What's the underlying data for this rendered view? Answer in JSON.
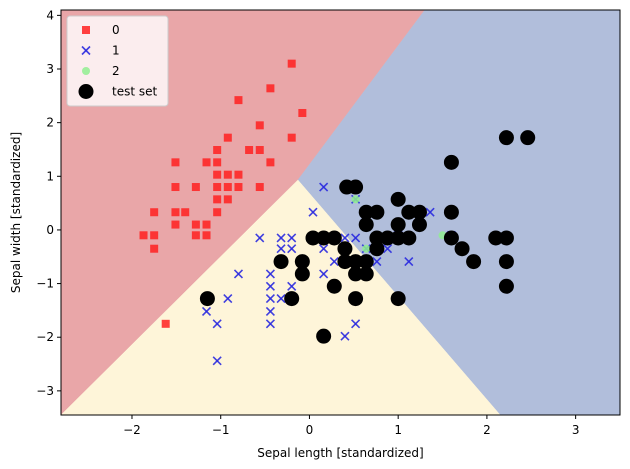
{
  "chart_data": {
    "type": "scatter",
    "title": "",
    "xlabel": "Sepal length [standardized]",
    "ylabel": "Sepal width [standardized]",
    "xlim": [
      -2.8,
      3.5
    ],
    "ylim": [
      -3.45,
      4.1
    ],
    "xticks": [
      -2,
      -1,
      0,
      1,
      2,
      3
    ],
    "xtick_labels": [
      "−2",
      "−1",
      "0",
      "1",
      "2",
      "3"
    ],
    "yticks": [
      -3,
      -2,
      -1,
      0,
      1,
      2,
      3,
      4
    ],
    "ytick_labels": [
      "−3",
      "−2",
      "−1",
      "0",
      "1",
      "2",
      "3",
      "4"
    ],
    "legend_position": "top-left",
    "decision_regions": [
      {
        "class": "0",
        "color": "#e9a6a8",
        "polygon": [
          [
            -2.8,
            -3.45
          ],
          [
            -2.8,
            4.1
          ],
          [
            1.3,
            4.1
          ],
          [
            -0.13,
            0.93
          ],
          [
            -2.8,
            -3.45
          ]
        ]
      },
      {
        "class": "1",
        "color": "#b1bedb",
        "polygon": [
          [
            1.3,
            4.1
          ],
          [
            3.5,
            4.1
          ],
          [
            3.5,
            -3.45
          ],
          [
            2.15,
            -3.45
          ],
          [
            -0.13,
            0.93
          ]
        ]
      },
      {
        "class": "2",
        "color": "#fef5d9",
        "polygon": [
          [
            -2.8,
            -3.45
          ],
          [
            -0.13,
            0.93
          ],
          [
            2.15,
            -3.45
          ]
        ]
      }
    ],
    "series": [
      {
        "name": "0",
        "marker": "square",
        "color": "#ff2020",
        "points": [
          [
            -1.75,
            0.33
          ],
          [
            -1.87,
            -0.1
          ],
          [
            -1.75,
            -0.1
          ],
          [
            -1.75,
            -0.35
          ],
          [
            -1.51,
            1.26
          ],
          [
            -1.51,
            0.8
          ],
          [
            -1.51,
            0.33
          ],
          [
            -1.51,
            0.1
          ],
          [
            -1.4,
            0.33
          ],
          [
            -1.28,
            0.8
          ],
          [
            -1.28,
            0.1
          ],
          [
            -1.28,
            -0.1
          ],
          [
            -1.16,
            1.26
          ],
          [
            -1.16,
            0.1
          ],
          [
            -1.16,
            -0.1
          ],
          [
            -1.04,
            1.49
          ],
          [
            -1.04,
            1.26
          ],
          [
            -1.04,
            1.03
          ],
          [
            -1.04,
            0.8
          ],
          [
            -1.04,
            0.57
          ],
          [
            -1.04,
            0.33
          ],
          [
            -0.92,
            1.72
          ],
          [
            -0.92,
            1.03
          ],
          [
            -0.92,
            0.8
          ],
          [
            -0.92,
            0.57
          ],
          [
            -0.8,
            2.42
          ],
          [
            -0.8,
            1.03
          ],
          [
            -0.8,
            0.8
          ],
          [
            -0.68,
            1.49
          ],
          [
            -0.56,
            1.95
          ],
          [
            -0.56,
            1.49
          ],
          [
            -0.56,
            0.8
          ],
          [
            -0.44,
            2.64
          ],
          [
            -0.44,
            1.26
          ],
          [
            -0.2,
            3.1
          ],
          [
            -0.2,
            1.72
          ],
          [
            -0.08,
            2.18
          ],
          [
            -1.62,
            -1.75
          ]
        ]
      },
      {
        "name": "1",
        "marker": "x",
        "color": "#2a2adf",
        "points": [
          [
            -1.16,
            -1.52
          ],
          [
            -1.04,
            -1.75
          ],
          [
            -1.04,
            -2.44
          ],
          [
            -0.92,
            -1.28
          ],
          [
            -0.8,
            -0.82
          ],
          [
            -0.56,
            -0.15
          ],
          [
            -0.44,
            -0.82
          ],
          [
            -0.44,
            -1.05
          ],
          [
            -0.44,
            -1.28
          ],
          [
            -0.44,
            -1.52
          ],
          [
            -0.44,
            -1.75
          ],
          [
            -0.32,
            -0.15
          ],
          [
            -0.32,
            -0.35
          ],
          [
            -0.32,
            -0.59
          ],
          [
            -0.32,
            -1.28
          ],
          [
            -0.2,
            -0.15
          ],
          [
            -0.2,
            -0.35
          ],
          [
            -0.2,
            -1.05
          ],
          [
            0.04,
            0.33
          ],
          [
            0.16,
            0.8
          ],
          [
            0.16,
            -0.35
          ],
          [
            0.16,
            -0.82
          ],
          [
            0.28,
            -0.59
          ],
          [
            0.4,
            -0.15
          ],
          [
            0.4,
            -0.35
          ],
          [
            0.52,
            0.57
          ],
          [
            0.52,
            -0.15
          ],
          [
            0.52,
            -1.75
          ],
          [
            0.64,
            -0.35
          ],
          [
            0.76,
            -0.59
          ],
          [
            0.88,
            -0.15
          ],
          [
            0.88,
            -0.35
          ],
          [
            1.0,
            -0.1
          ],
          [
            1.12,
            -0.59
          ],
          [
            1.24,
            0.1
          ],
          [
            1.36,
            0.33
          ],
          [
            1.6,
            -0.1
          ],
          [
            0.4,
            -1.98
          ]
        ]
      },
      {
        "name": "2",
        "marker": "circle",
        "color": "#90ee90",
        "points": [
          [
            0.52,
            0.57
          ],
          [
            0.64,
            -0.35
          ],
          [
            1.5,
            -0.1
          ]
        ]
      },
      {
        "name": "test set",
        "marker": "bigcircle",
        "color": "#000000",
        "points": [
          [
            -1.15,
            -1.28
          ],
          [
            -0.32,
            -0.59
          ],
          [
            -0.2,
            -1.28
          ],
          [
            -0.08,
            -0.59
          ],
          [
            -0.08,
            -0.82
          ],
          [
            0.04,
            -0.15
          ],
          [
            0.16,
            -0.15
          ],
          [
            0.16,
            -1.98
          ],
          [
            0.28,
            -1.05
          ],
          [
            0.28,
            -0.15
          ],
          [
            0.4,
            -0.59
          ],
          [
            0.4,
            -0.35
          ],
          [
            0.42,
            0.8
          ],
          [
            0.52,
            0.8
          ],
          [
            0.52,
            -0.59
          ],
          [
            0.52,
            -0.82
          ],
          [
            0.52,
            -1.28
          ],
          [
            0.64,
            -0.59
          ],
          [
            0.64,
            -0.82
          ],
          [
            0.64,
            0.33
          ],
          [
            0.64,
            0.1
          ],
          [
            0.76,
            0.33
          ],
          [
            0.76,
            -0.15
          ],
          [
            0.76,
            -0.35
          ],
          [
            0.88,
            -0.15
          ],
          [
            1.0,
            0.57
          ],
          [
            1.0,
            0.1
          ],
          [
            1.0,
            -0.15
          ],
          [
            1.0,
            -1.28
          ],
          [
            1.12,
            0.33
          ],
          [
            1.12,
            -0.15
          ],
          [
            1.24,
            0.33
          ],
          [
            1.24,
            0.1
          ],
          [
            1.6,
            1.26
          ],
          [
            1.6,
            0.33
          ],
          [
            1.6,
            -0.15
          ],
          [
            1.72,
            -0.35
          ],
          [
            1.85,
            -0.59
          ],
          [
            2.1,
            -0.15
          ],
          [
            2.22,
            1.72
          ],
          [
            2.22,
            -0.15
          ],
          [
            2.22,
            -0.59
          ],
          [
            2.22,
            -1.05
          ],
          [
            2.46,
            1.72
          ]
        ]
      }
    ]
  }
}
